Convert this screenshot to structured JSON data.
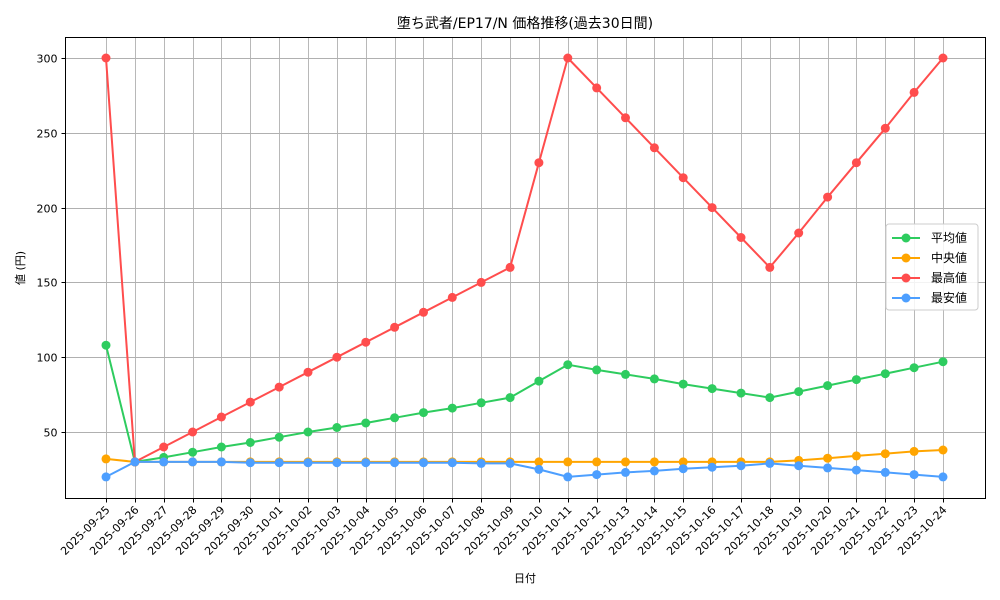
{
  "chart_data": {
    "type": "line",
    "title": "堕ち武者/EP17/N 価格推移(過去30日間)",
    "xlabel": "日付",
    "ylabel": "値 (円)",
    "ylim": [
      8,
      315
    ],
    "yticks": [
      50,
      100,
      150,
      200,
      250,
      300
    ],
    "grid": true,
    "legend_position": "center right",
    "categories": [
      "2025-09-25",
      "2025-09-26",
      "2025-09-27",
      "2025-09-28",
      "2025-09-29",
      "2025-09-30",
      "2025-10-01",
      "2025-10-02",
      "2025-10-03",
      "2025-10-04",
      "2025-10-05",
      "2025-10-06",
      "2025-10-07",
      "2025-10-08",
      "2025-10-09",
      "2025-10-10",
      "2025-10-11",
      "2025-10-12",
      "2025-10-13",
      "2025-10-14",
      "2025-10-15",
      "2025-10-16",
      "2025-10-17",
      "2025-10-18",
      "2025-10-19",
      "2025-10-20",
      "2025-10-21",
      "2025-10-22",
      "2025-10-23",
      "2025-10-24"
    ],
    "series": [
      {
        "name": "平均値",
        "color": "#2ecc5f",
        "values": [
          108,
          30,
          33,
          36.5,
          40,
          43,
          46.5,
          50,
          53,
          56,
          59.5,
          63,
          66,
          69.5,
          73,
          84,
          95,
          91.5,
          88.5,
          85.5,
          82,
          79,
          76,
          73,
          77,
          81,
          85,
          89,
          93,
          97
        ]
      },
      {
        "name": "中央値",
        "color": "#ffa500",
        "values": [
          32,
          30,
          30,
          30,
          30,
          30,
          30,
          30,
          30,
          30,
          30,
          30,
          30,
          30,
          30,
          30,
          30,
          30,
          30,
          30,
          30,
          30,
          30,
          30,
          31,
          32.5,
          34,
          35.5,
          37,
          38
        ]
      },
      {
        "name": "最高値",
        "color": "#ff4d4d",
        "values": [
          300,
          30,
          40,
          50,
          60,
          70,
          80,
          90,
          100,
          110,
          120,
          130,
          140,
          150,
          160,
          230,
          300,
          280,
          260,
          240,
          220,
          200,
          180,
          160,
          183,
          207,
          230,
          253,
          277,
          300
        ]
      },
      {
        "name": "最安値",
        "color": "#4d9fff",
        "values": [
          20,
          30,
          30,
          30,
          30,
          29.5,
          29.5,
          29.5,
          29.5,
          29.5,
          29.5,
          29.5,
          29.5,
          29,
          29,
          25,
          20,
          21.5,
          23,
          24,
          25.5,
          26.5,
          27.5,
          29,
          27.5,
          26,
          24.5,
          23,
          21.5,
          20
        ]
      }
    ]
  }
}
